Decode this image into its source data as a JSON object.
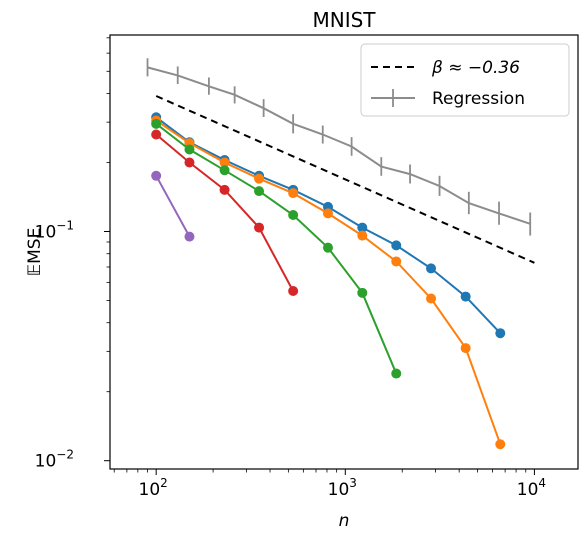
{
  "chart_data": {
    "type": "line",
    "title": "MNIST",
    "xlabel": "n",
    "ylabel": "𝔼MSE",
    "x_scale": "log",
    "y_scale": "log",
    "xlim": [
      57,
      17000
    ],
    "ylim": [
      0.0092,
      0.72
    ],
    "grid": false,
    "legend_position": "top-right",
    "x_ticks": [
      {
        "value": 100,
        "base": "10",
        "exp": "2"
      },
      {
        "value": 1000,
        "base": "10",
        "exp": "3"
      },
      {
        "value": 10000,
        "base": "10",
        "exp": "4"
      }
    ],
    "y_ticks": [
      {
        "value": 0.01,
        "base": "10",
        "exp": "−2"
      },
      {
        "value": 0.1,
        "base": "10",
        "exp": "−1"
      }
    ],
    "series": [
      {
        "name": "β ≈ −0.36",
        "style": "dashed",
        "color": "#000000",
        "in_legend": true,
        "x": [
          100,
          10000
        ],
        "y": [
          0.39,
          0.073
        ]
      },
      {
        "name": "Regression",
        "style": "errorbar",
        "color": "#8c8c8c",
        "in_legend": true,
        "x": [
          90,
          130,
          190,
          260,
          370,
          530,
          760,
          1080,
          1550,
          2200,
          3150,
          4500,
          6500,
          9500
        ],
        "y": [
          0.52,
          0.48,
          0.43,
          0.395,
          0.345,
          0.295,
          0.265,
          0.235,
          0.192,
          0.178,
          0.158,
          0.133,
          0.12,
          0.108
        ],
        "err_low": [
          0.475,
          0.44,
          0.395,
          0.362,
          0.316,
          0.268,
          0.242,
          0.214,
          0.175,
          0.162,
          0.143,
          0.119,
          0.107,
          0.096
        ],
        "err_high": [
          0.57,
          0.525,
          0.47,
          0.43,
          0.378,
          0.325,
          0.29,
          0.258,
          0.211,
          0.196,
          0.175,
          0.149,
          0.135,
          0.121
        ]
      },
      {
        "style": "line-marker",
        "color": "#1f77b4",
        "in_legend": false,
        "x": [
          100,
          150,
          230,
          350,
          530,
          810,
          1230,
          1860,
          2840,
          4330,
          6600
        ],
        "y": [
          0.315,
          0.245,
          0.205,
          0.175,
          0.152,
          0.128,
          0.104,
          0.087,
          0.069,
          0.052,
          0.036
        ]
      },
      {
        "style": "line-marker",
        "color": "#ff7f0e",
        "in_legend": false,
        "x": [
          100,
          150,
          230,
          350,
          530,
          810,
          1230,
          1860,
          2840,
          4330,
          6600
        ],
        "y": [
          0.305,
          0.243,
          0.2,
          0.17,
          0.147,
          0.12,
          0.096,
          0.074,
          0.051,
          0.031,
          0.0118
        ]
      },
      {
        "style": "line-marker",
        "color": "#2ca02c",
        "in_legend": false,
        "x": [
          100,
          150,
          230,
          350,
          530,
          810,
          1230,
          1860
        ],
        "y": [
          0.295,
          0.228,
          0.185,
          0.15,
          0.118,
          0.085,
          0.054,
          0.024
        ]
      },
      {
        "style": "line-marker",
        "color": "#d62728",
        "in_legend": false,
        "x": [
          100,
          150,
          230,
          350,
          530
        ],
        "y": [
          0.265,
          0.2,
          0.152,
          0.104,
          0.055
        ]
      },
      {
        "style": "line-marker",
        "color": "#9467bd",
        "in_legend": false,
        "x": [
          100,
          150
        ],
        "y": [
          0.175,
          0.095
        ]
      }
    ]
  }
}
